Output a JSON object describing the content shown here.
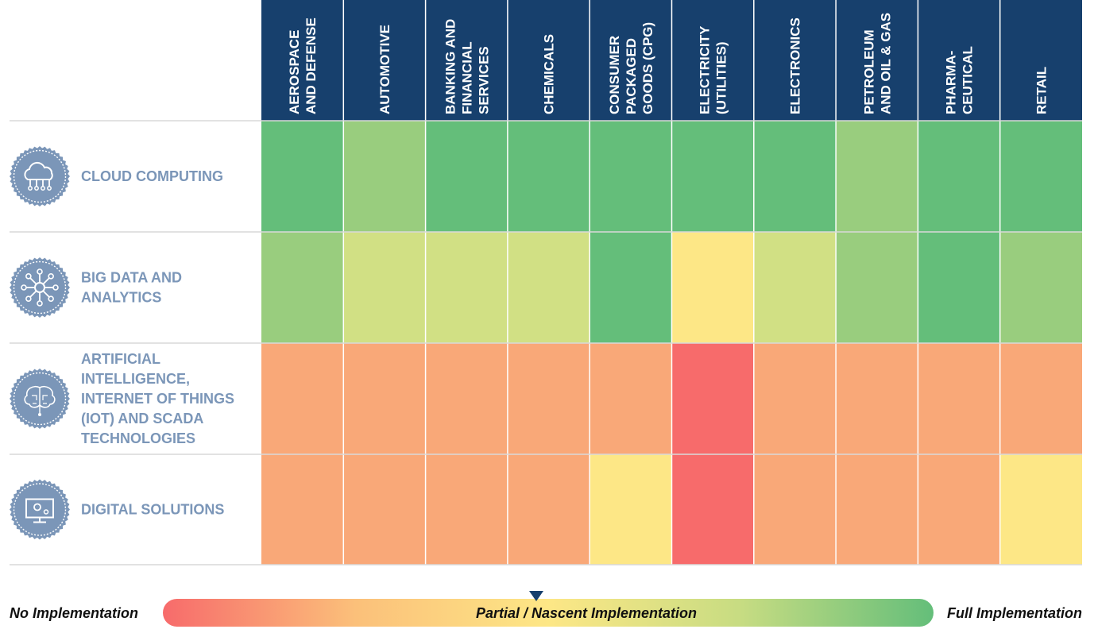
{
  "chart_data": {
    "type": "heatmap",
    "columns": [
      "AEROSPACE AND DEFENSE",
      "AUTOMOTIVE",
      "BANKING AND FINANCIAL SERVICES",
      "CHEMICALS",
      "CONSUMER PACKAGED GOODS (CPG)",
      "ELECTRICITY (UTILITIES)",
      "ELECTRONICS",
      "PETROLEUM AND OIL & GAS",
      "PHARMA-CEUTICAL",
      "RETAIL"
    ],
    "column_lines": [
      [
        "AEROSPACE",
        "AND DEFENSE"
      ],
      [
        "AUTOMOTIVE"
      ],
      [
        "BANKING AND",
        "FINANCIAL",
        "SERVICES"
      ],
      [
        "CHEMICALS"
      ],
      [
        "CONSUMER",
        "PACKAGED",
        "GOODS (CPG)"
      ],
      [
        "ELECTRICITY",
        "(UTILITIES)"
      ],
      [
        "ELECTRONICS"
      ],
      [
        "PETROLEUM",
        "AND OIL & GAS"
      ],
      [
        "PHARMA-",
        "CEUTICAL"
      ],
      [
        "RETAIL"
      ]
    ],
    "rows": [
      {
        "label": "CLOUD COMPUTING",
        "lines": [
          "CLOUD COMPUTING"
        ],
        "icon": "cloud-network-icon"
      },
      {
        "label": "BIG DATA AND ANALYTICS",
        "lines": [
          "BIG DATA AND",
          "ANALYTICS"
        ],
        "icon": "data-network-icon"
      },
      {
        "label": "ARTIFICIAL INTELLIGENCE, INTERNET OF THINGS (IOT) AND SCADA TECHNOLOGIES",
        "lines": [
          "ARTIFICIAL",
          "INTELLIGENCE,",
          "INTERNET OF THINGS",
          "(IOT) AND SCADA",
          "TECHNOLOGIES"
        ],
        "icon": "brain-circuit-icon"
      },
      {
        "label": "DIGITAL SOLUTIONS",
        "lines": [
          "DIGITAL SOLUTIONS"
        ],
        "icon": "monitor-gear-icon"
      }
    ],
    "values": [
      [
        5,
        4,
        5,
        5,
        5,
        5,
        5,
        4,
        5,
        5
      ],
      [
        4,
        3,
        3,
        3,
        5,
        2,
        3,
        4,
        5,
        4
      ],
      [
        1,
        1,
        1,
        1,
        1,
        0,
        1,
        1,
        1,
        1
      ],
      [
        1,
        1,
        1,
        1,
        2,
        0,
        1,
        1,
        1,
        2
      ]
    ],
    "color_scale": {
      "0": "#f76b6b",
      "1": "#f9a878",
      "2": "#fde786",
      "3": "#d1e084",
      "4": "#99cd7e",
      "5": "#64be7a"
    },
    "header_color": "#17406d",
    "label_color": "#7b96b8",
    "legend": {
      "left": "No Implementation",
      "middle": "Partial / Nascent Implementation",
      "right": "Full Implementation",
      "gradient": [
        "#f76b6b",
        "#fbc07a",
        "#fde786",
        "#c7dc82",
        "#64be7a"
      ],
      "marker_color": "#17406d",
      "marker_fraction": 0.5
    }
  }
}
